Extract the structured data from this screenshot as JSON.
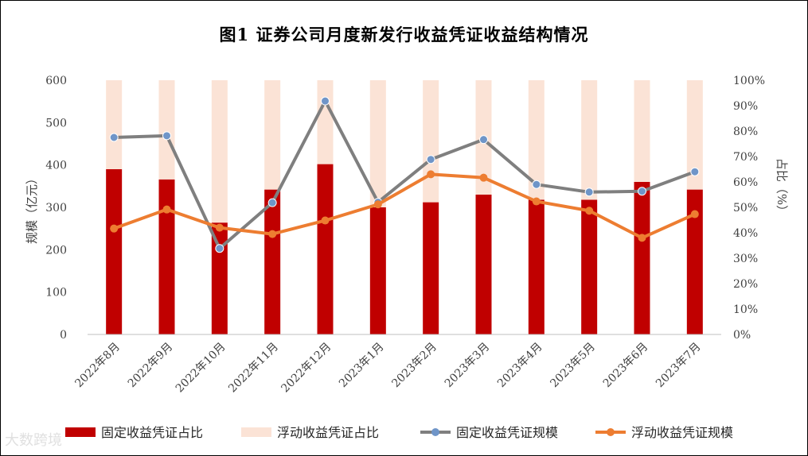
{
  "title": "图1  证券公司月度新发行收益凭证收益结构情况",
  "watermark": "大数跨境",
  "chart_data": {
    "type": "bar+line",
    "categories": [
      "2022年8月",
      "2022年9月",
      "2022年10月",
      "2022年11月",
      "2022年12月",
      "2023年1月",
      "2023年2月",
      "2023年3月",
      "2023年4月",
      "2023年5月",
      "2023年6月",
      "2023年7月"
    ],
    "ylabel_left": "规模（亿元）",
    "ylabel_right": "占比（%）",
    "ylim_left": [
      0,
      600
    ],
    "yticks_left": [
      "0",
      "100",
      "200",
      "300",
      "400",
      "500",
      "600"
    ],
    "ylim_right": [
      0,
      100
    ],
    "yticks_right": [
      "0%",
      "10%",
      "20%",
      "30%",
      "40%",
      "50%",
      "60%",
      "70%",
      "80%",
      "90%",
      "100%"
    ],
    "legend_position": "bottom",
    "series": [
      {
        "name": "固定收益凭证占比",
        "kind": "bar",
        "axis": "right",
        "color": "#c00000",
        "values": [
          65,
          61,
          44,
          57,
          67,
          50,
          52,
          55,
          53,
          53,
          60,
          57
        ]
      },
      {
        "name": "浮动收益凭证占比",
        "kind": "bar",
        "axis": "right",
        "color": "#fbe3d6",
        "values": [
          35,
          39,
          56,
          43,
          33,
          50,
          48,
          45,
          47,
          47,
          40,
          43
        ]
      },
      {
        "name": "固定收益凭证规模",
        "kind": "line",
        "axis": "left",
        "color": "#7f7f7f",
        "marker": "#6f95c8",
        "values": [
          465,
          469,
          203,
          311,
          551,
          312,
          413,
          460,
          354,
          336,
          338,
          384
        ]
      },
      {
        "name": "浮动收益凭证规模",
        "kind": "line",
        "axis": "left",
        "color": "#ed7d31",
        "marker": "#ed7d31",
        "values": [
          250,
          295,
          252,
          237,
          269,
          307,
          378,
          370,
          314,
          292,
          228,
          284
        ]
      }
    ]
  }
}
